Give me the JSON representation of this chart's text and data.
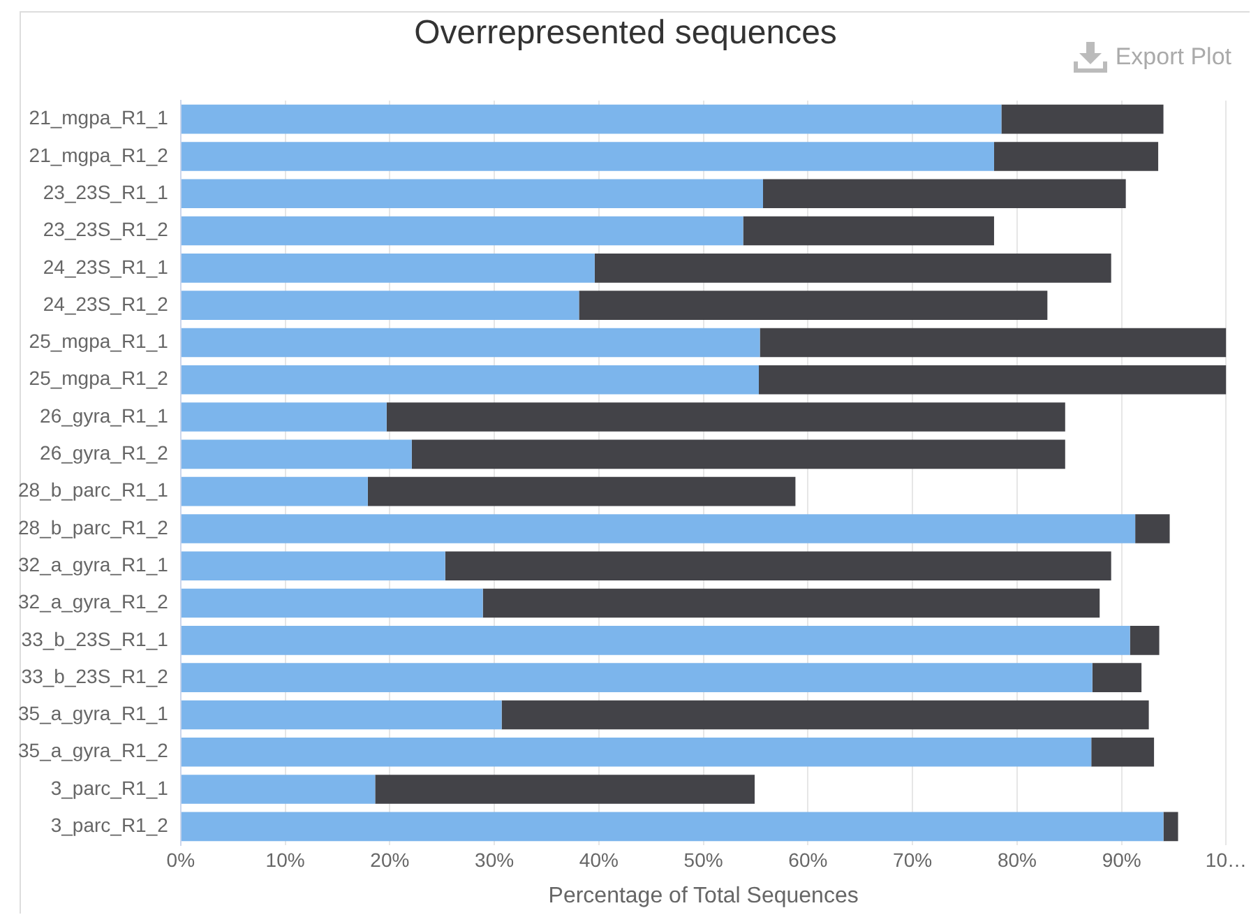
{
  "chart_data": {
    "type": "bar",
    "orientation": "horizontal",
    "stacked": true,
    "title": "Overrepresented sequences",
    "xlabel": "Percentage of Total Sequences",
    "annotations": [
      "Export Plot"
    ],
    "categories": [
      "21_mgpa_R1_1",
      "21_mgpa_R1_2",
      "23_23S_R1_1",
      "23_23S_R1_2",
      "24_23S_R1_1",
      "24_23S_R1_2",
      "25_mgpa_R1_1",
      "25_mgpa_R1_2",
      "26_gyra_R1_1",
      "26_gyra_R1_2",
      "28_b_parc_R1_1",
      "28_b_parc_R1_2",
      "32_a_gyra_R1_1",
      "32_a_gyra_R1_2",
      "33_b_23S_R1_1",
      "33_b_23S_R1_2",
      "35_a_gyra_R1_1",
      "35_a_gyra_R1_2",
      "3_parc_R1_1",
      "3_parc_R1_2"
    ],
    "series": [
      {
        "color": "#7cb5ec",
        "values": [
          78.5,
          77.8,
          55.7,
          53.8,
          39.6,
          38.1,
          55.4,
          55.3,
          19.7,
          22.1,
          17.9,
          91.3,
          25.3,
          28.9,
          90.8,
          87.2,
          30.7,
          87.1,
          18.6,
          94.0
        ]
      },
      {
        "color": "#434348",
        "values": [
          15.5,
          15.7,
          34.7,
          24.0,
          49.4,
          44.8,
          44.6,
          44.7,
          64.9,
          62.5,
          40.9,
          3.3,
          63.7,
          59.0,
          2.8,
          4.7,
          61.9,
          6.0,
          36.3,
          1.4
        ]
      }
    ],
    "xlim": [
      0,
      100
    ],
    "xticks": [
      {
        "value": 0,
        "label": "0%"
      },
      {
        "value": 10,
        "label": "10%"
      },
      {
        "value": 20,
        "label": "20%"
      },
      {
        "value": 30,
        "label": "30%"
      },
      {
        "value": 40,
        "label": "40%"
      },
      {
        "value": 50,
        "label": "50%"
      },
      {
        "value": 60,
        "label": "60%"
      },
      {
        "value": 70,
        "label": "70%"
      },
      {
        "value": 80,
        "label": "80%"
      },
      {
        "value": 90,
        "label": "90%"
      },
      {
        "value": 100,
        "label": "10…"
      }
    ],
    "grid": "x",
    "legend": false
  }
}
